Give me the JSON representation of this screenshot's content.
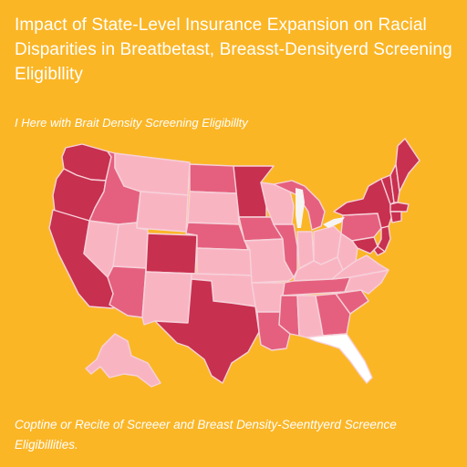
{
  "title": "Impact of State-Level Insurance Expansion on Racial Disparities in Breatbetast, Breasst-Densityerd Screening Eligibllity",
  "subtitle": "I Here with Brait Density Screening Eligibillty",
  "caption": "Coptine or Recite of Screeer and Breast Density-Seenttyerd Screence Eligibillities.",
  "colors": {
    "background": "#fbb626",
    "text": "#ffffff",
    "light": "#f9b4c2",
    "medium": "#e5607e",
    "dark": "#c8304f",
    "unshaded": "#ffffff"
  },
  "map": {
    "states": [
      {
        "id": "WA",
        "shade": "dark"
      },
      {
        "id": "OR",
        "shade": "dark"
      },
      {
        "id": "CA",
        "shade": "dark"
      },
      {
        "id": "NV",
        "shade": "light"
      },
      {
        "id": "ID",
        "shade": "medium"
      },
      {
        "id": "MT",
        "shade": "light"
      },
      {
        "id": "WY",
        "shade": "light"
      },
      {
        "id": "UT",
        "shade": "light"
      },
      {
        "id": "AZ",
        "shade": "medium"
      },
      {
        "id": "CO",
        "shade": "dark"
      },
      {
        "id": "NM",
        "shade": "light"
      },
      {
        "id": "ND",
        "shade": "medium"
      },
      {
        "id": "SD",
        "shade": "light"
      },
      {
        "id": "NE",
        "shade": "medium"
      },
      {
        "id": "KS",
        "shade": "light"
      },
      {
        "id": "OK",
        "shade": "light"
      },
      {
        "id": "TX",
        "shade": "dark"
      },
      {
        "id": "MN",
        "shade": "dark"
      },
      {
        "id": "IA",
        "shade": "medium"
      },
      {
        "id": "MO",
        "shade": "light"
      },
      {
        "id": "AR",
        "shade": "light"
      },
      {
        "id": "LA",
        "shade": "medium"
      },
      {
        "id": "WI",
        "shade": "light"
      },
      {
        "id": "IL",
        "shade": "medium"
      },
      {
        "id": "MI",
        "shade": "medium"
      },
      {
        "id": "IN",
        "shade": "light"
      },
      {
        "id": "OH",
        "shade": "light"
      },
      {
        "id": "KY",
        "shade": "light"
      },
      {
        "id": "TN",
        "shade": "medium"
      },
      {
        "id": "MS",
        "shade": "medium"
      },
      {
        "id": "AL",
        "shade": "light"
      },
      {
        "id": "GA",
        "shade": "medium"
      },
      {
        "id": "FL",
        "shade": "unshaded"
      },
      {
        "id": "SC",
        "shade": "medium"
      },
      {
        "id": "NC",
        "shade": "light"
      },
      {
        "id": "VA",
        "shade": "light"
      },
      {
        "id": "WV",
        "shade": "light"
      },
      {
        "id": "PA",
        "shade": "medium"
      },
      {
        "id": "NY",
        "shade": "dark"
      },
      {
        "id": "VT",
        "shade": "dark"
      },
      {
        "id": "NH",
        "shade": "dark"
      },
      {
        "id": "ME",
        "shade": "dark"
      },
      {
        "id": "MA",
        "shade": "dark"
      },
      {
        "id": "CT",
        "shade": "dark"
      },
      {
        "id": "NJ",
        "shade": "dark"
      },
      {
        "id": "MD",
        "shade": "dark"
      },
      {
        "id": "DE",
        "shade": "dark"
      },
      {
        "id": "AK",
        "shade": "light"
      }
    ]
  }
}
